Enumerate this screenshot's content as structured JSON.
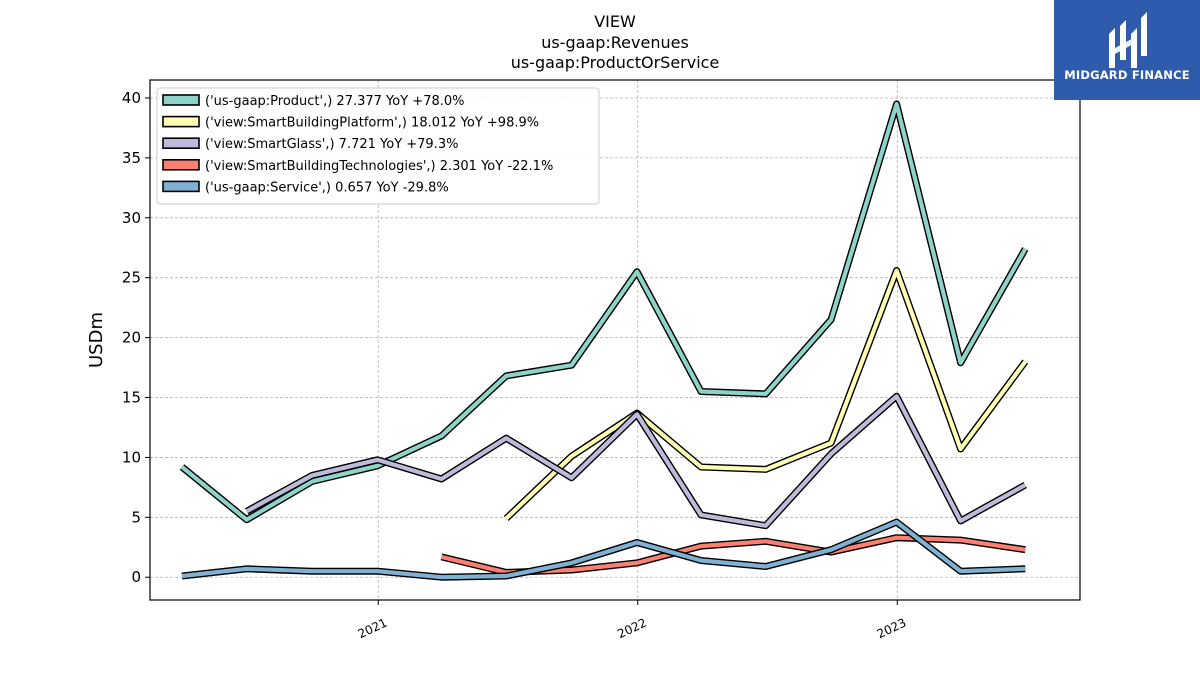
{
  "logo": {
    "text": "MIDGARD FINANCE",
    "icon": "midgard-logo-icon",
    "background": "#2f5bad"
  },
  "chart_data": {
    "type": "line",
    "title": [
      "VIEW",
      "us-gaap:Revenues",
      "us-gaap:ProductOrService"
    ],
    "xlabel": "",
    "ylabel": "USDm",
    "xlim": [
      "2020-02-15",
      "2023-09-15"
    ],
    "ylim": [
      -1.9,
      41.5
    ],
    "yticks": [
      0,
      5,
      10,
      15,
      20,
      25,
      30,
      35,
      40
    ],
    "xticks": [
      {
        "label": "2021",
        "date": "2021-01-01"
      },
      {
        "label": "2022",
        "date": "2022-01-01"
      },
      {
        "label": "2023",
        "date": "2023-01-01"
      }
    ],
    "grid": true,
    "legend": "top-left",
    "series": [
      {
        "name": "('us-gaap:Product',) 27.377 YoY +78.0%",
        "color": "#8dd3c7",
        "x": [
          "2020-03-31",
          "2020-06-30",
          "2020-09-30",
          "2020-12-31",
          "2021-03-31",
          "2021-06-30",
          "2021-09-30",
          "2021-12-31",
          "2022-03-31",
          "2022-06-30",
          "2022-09-30",
          "2022-12-31",
          "2023-03-31",
          "2023-06-30"
        ],
        "y": [
          9.2,
          4.8,
          8.0,
          9.3,
          11.8,
          16.8,
          17.7,
          25.5,
          15.5,
          15.3,
          21.5,
          39.5,
          17.9,
          27.4
        ]
      },
      {
        "name": "('view:SmartBuildingPlatform',) 18.012 YoY +98.9%",
        "color": "#ffffb3",
        "x": [
          "2021-06-30",
          "2021-09-30",
          "2021-12-31",
          "2022-03-31",
          "2022-06-30",
          "2022-09-30",
          "2022-12-31",
          "2023-03-31",
          "2023-06-30"
        ],
        "y": [
          4.9,
          10.1,
          13.7,
          9.2,
          9.0,
          11.2,
          25.6,
          10.7,
          18.0
        ]
      },
      {
        "name": "('view:SmartGlass',) 7.721 YoY +79.3%",
        "color": "#bebada",
        "x": [
          "2020-06-30",
          "2020-09-30",
          "2020-12-31",
          "2021-03-31",
          "2021-06-30",
          "2021-09-30",
          "2021-12-31",
          "2022-03-31",
          "2022-06-30",
          "2022-09-30",
          "2022-12-31",
          "2023-03-31",
          "2023-06-30"
        ],
        "y": [
          5.5,
          8.5,
          9.8,
          8.2,
          11.6,
          8.3,
          13.6,
          5.2,
          4.3,
          10.3,
          15.1,
          4.7,
          7.7
        ]
      },
      {
        "name": "('view:SmartBuildingTechnologies',) 2.301 YoY -22.1%",
        "color": "#fb8072",
        "x": [
          "2021-03-31",
          "2021-06-30",
          "2021-09-30",
          "2021-12-31",
          "2022-03-31",
          "2022-06-30",
          "2022-09-30",
          "2022-12-31",
          "2023-03-31",
          "2023-06-30"
        ],
        "y": [
          1.7,
          0.4,
          0.6,
          1.2,
          2.6,
          3.0,
          2.1,
          3.3,
          3.1,
          2.3
        ]
      },
      {
        "name": "('us-gaap:Service',) 0.657 YoY -29.8%",
        "color": "#80b1d3",
        "x": [
          "2020-03-31",
          "2020-06-30",
          "2020-09-30",
          "2020-12-31",
          "2021-03-31",
          "2021-06-30",
          "2021-09-30",
          "2021-12-31",
          "2022-03-31",
          "2022-06-30",
          "2022-09-30",
          "2022-12-31",
          "2023-03-31",
          "2023-06-30"
        ],
        "y": [
          0.1,
          0.7,
          0.5,
          0.5,
          0.0,
          0.1,
          1.2,
          2.9,
          1.4,
          0.9,
          2.3,
          4.6,
          0.5,
          0.7
        ]
      }
    ]
  }
}
